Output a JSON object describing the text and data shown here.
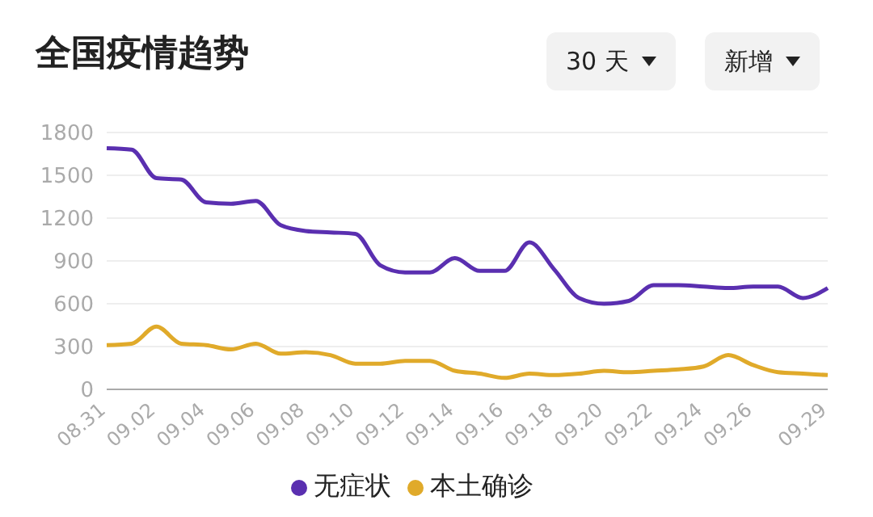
{
  "chart_data": {
    "type": "line",
    "title": "全国疫情趋势",
    "annotations": [
      "30 天",
      "新增"
    ],
    "categories": [
      "08.31",
      null,
      "09.02",
      null,
      "09.04",
      null,
      "09.06",
      null,
      "09.08",
      null,
      "09.10",
      null,
      "09.12",
      null,
      "09.14",
      null,
      "09.16",
      null,
      "09.18",
      null,
      "09.20",
      null,
      "09.22",
      null,
      "09.24",
      null,
      "09.26",
      null,
      null,
      "09.29"
    ],
    "series": [
      {
        "name": "本土确诊",
        "color": "#e0aa2a",
        "values": [
          310,
          320,
          440,
          320,
          310,
          280,
          320,
          250,
          260,
          240,
          180,
          180,
          200,
          200,
          130,
          110,
          80,
          110,
          100,
          110,
          130,
          120,
          130,
          140,
          160,
          240,
          170,
          120,
          110,
          100
        ]
      },
      {
        "name": "无症状",
        "color": "#5a2fb0",
        "values": [
          1690,
          1680,
          1480,
          1470,
          1310,
          1300,
          1320,
          1150,
          1110,
          1100,
          1090,
          870,
          820,
          820,
          920,
          830,
          830,
          1030,
          840,
          640,
          600,
          620,
          730,
          730,
          720,
          710,
          720,
          720,
          640,
          710
        ]
      }
    ],
    "ylim": [
      0,
      1800
    ],
    "yticks": [
      0,
      300,
      600,
      900,
      1200,
      1500,
      1800
    ],
    "grid": "y",
    "legend": "bottom",
    "marker": "none",
    "line_style": "solid"
  }
}
